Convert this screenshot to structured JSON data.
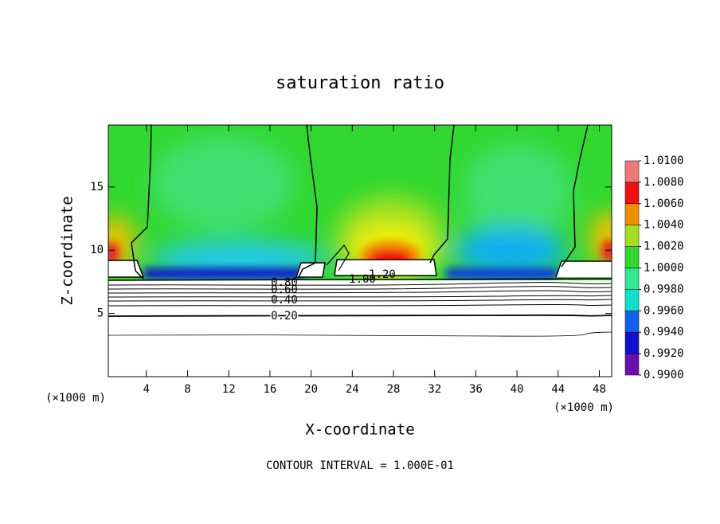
{
  "chart_data": {
    "type": "contour",
    "title": "saturation ratio",
    "x_label": "X-coordinate",
    "y_label": "Z-coordinate",
    "x_unit": "(×1000 m)",
    "y_unit": "(×1000 m)",
    "footnote": "CONTOUR INTERVAL = 1.000E-01",
    "xlim": [
      0.3,
      49.2
    ],
    "ylim": [
      0,
      19.9
    ],
    "xticks": [
      4,
      8,
      12,
      16,
      20,
      24,
      28,
      32,
      36,
      40,
      44,
      48
    ],
    "yticks": [
      5,
      10,
      15
    ],
    "contour_labels": [
      "0.80",
      "0.60",
      "0.40",
      "0.20",
      "1.00",
      "1.20"
    ],
    "colorbar": {
      "lim": [
        0.99,
        1.01
      ],
      "ticks": [
        {
          "value": 0.99,
          "label": "0.9900"
        },
        {
          "value": 0.992,
          "label": "0.9920"
        },
        {
          "value": 0.994,
          "label": "0.9940"
        },
        {
          "value": 0.996,
          "label": "0.9960"
        },
        {
          "value": 0.998,
          "label": "0.9980"
        },
        {
          "value": 1.0,
          "label": "1.0000"
        },
        {
          "value": 1.002,
          "label": "1.0020"
        },
        {
          "value": 1.004,
          "label": "1.0040"
        },
        {
          "value": 1.006,
          "label": "1.0060"
        },
        {
          "value": 1.008,
          "label": "1.0080"
        },
        {
          "value": 1.01,
          "label": "1.0100"
        }
      ],
      "colors": [
        "#6a10b0",
        "#1010d0",
        "#1060f0",
        "#10a8f0",
        "#10e0d0",
        "#30e890",
        "#30d830",
        "#a0e020",
        "#f0f000",
        "#f09000",
        "#f01010",
        "#f07878"
      ]
    }
  }
}
